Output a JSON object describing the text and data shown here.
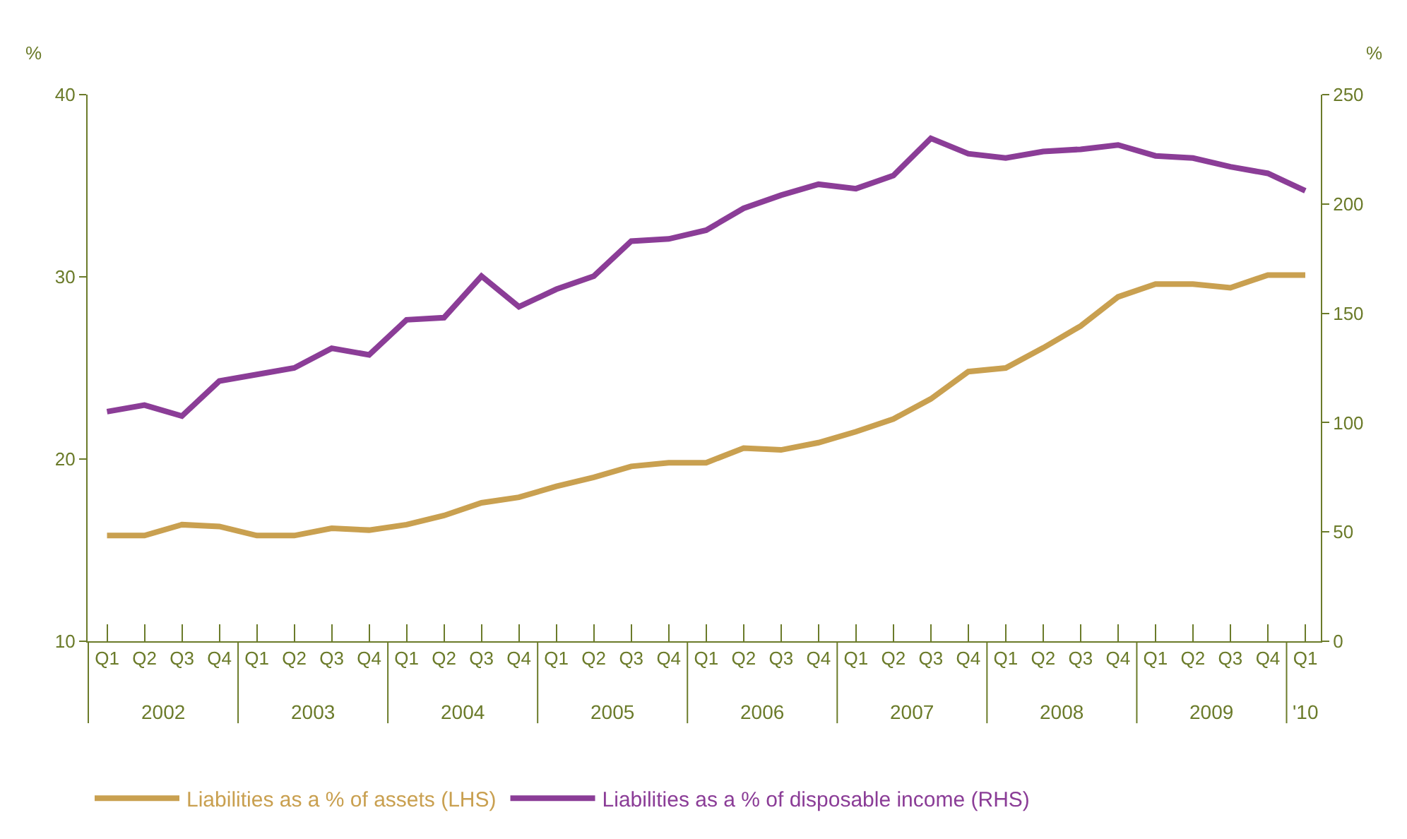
{
  "chart_data": {
    "type": "line",
    "ylabel": "%",
    "y2label": "%",
    "categories": [
      "Q1",
      "Q2",
      "Q3",
      "Q4",
      "Q1",
      "Q2",
      "Q3",
      "Q4",
      "Q1",
      "Q2",
      "Q3",
      "Q4",
      "Q1",
      "Q2",
      "Q3",
      "Q4",
      "Q1",
      "Q2",
      "Q3",
      "Q4",
      "Q1",
      "Q2",
      "Q3",
      "Q4",
      "Q1",
      "Q2",
      "Q3",
      "Q4",
      "Q1",
      "Q2",
      "Q3",
      "Q4",
      "Q1"
    ],
    "annotations": [
      "2002",
      "2003",
      "2004",
      "2005",
      "2006",
      "2007",
      "2008",
      "2009",
      "'10"
    ],
    "series": [
      {
        "name": "Liabilities as a % of assets (LHS)",
        "color": "#c9a050",
        "values": [
          15.8,
          15.8,
          16.4,
          16.3,
          15.8,
          15.8,
          16.2,
          16.1,
          16.4,
          16.9,
          17.6,
          17.9,
          18.5,
          19.0,
          19.6,
          19.8,
          19.8,
          20.6,
          20.5,
          20.9,
          21.5,
          22.2,
          23.3,
          24.8,
          25.0,
          26.1,
          27.3,
          28.9,
          29.6,
          29.6,
          29.4,
          30.1,
          30.1
        ]
      },
      {
        "name": "Liabilities as a % of disposable income (RHS)",
        "color": "#8b3d97",
        "axis": "y2",
        "values": [
          105,
          108,
          103,
          119,
          122,
          125,
          134,
          131,
          147,
          148,
          167,
          153,
          161,
          167,
          183,
          184,
          188,
          198,
          204,
          209,
          207,
          213,
          230,
          223,
          221,
          224,
          225,
          227,
          222,
          221,
          217,
          214,
          206
        ]
      }
    ],
    "ylim": [
      10,
      40
    ],
    "yticks": [
      10,
      20,
      30,
      40
    ],
    "y2lim": [
      0,
      250
    ],
    "y2ticks": [
      0,
      50,
      100,
      150,
      200,
      250
    ],
    "legend": "bottom",
    "marker": "none",
    "line_style": "solid"
  }
}
